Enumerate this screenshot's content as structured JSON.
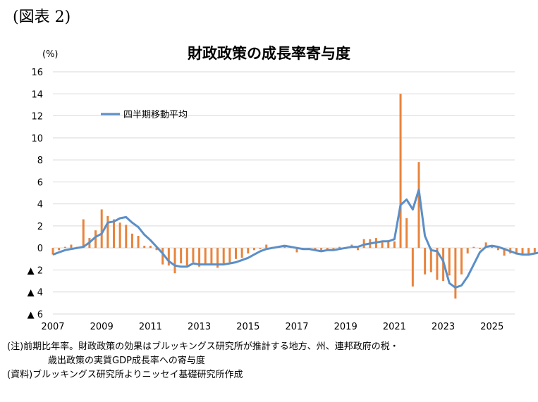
{
  "figure_label": "(図表 2)",
  "notes": {
    "note_line1": "(注)前期比年率。財政政策の効果はブルッキングス研究所が推計する地方、州、連邦政府の税・",
    "note_line2": "歳出政策の実質GDP成長率への寄与度",
    "source": "(資料)ブルッキングス研究所よりニッセイ基礎研究所作成"
  },
  "chart_data": {
    "type": "bar+line",
    "title": "財政政策の成長率寄与度",
    "ylabel": "(%)",
    "ylim": [
      -6,
      16
    ],
    "yticks": [
      16,
      14,
      12,
      10,
      8,
      6,
      4,
      2,
      0,
      -2,
      -4,
      -6
    ],
    "ytick_labels": [
      "16",
      "14",
      "12",
      "10",
      "8",
      "6",
      "4",
      "2",
      "0",
      "▲ 2",
      "▲ 4",
      "▲ 6"
    ],
    "xlabels": [
      "2007",
      "2009",
      "2011",
      "2013",
      "2015",
      "2017",
      "2019",
      "2021",
      "2023",
      "2025"
    ],
    "x_start": 2007.0,
    "grid": true,
    "colors": {
      "bars": "#e8843c",
      "line": "#5b8fc7",
      "grid": "#d9d9d9"
    },
    "series": [
      {
        "name": "",
        "kind": "bar",
        "values": [
          -0.6,
          -0.2,
          0.1,
          0.3,
          0.1,
          2.6,
          0.9,
          1.6,
          3.5,
          2.9,
          2.6,
          2.3,
          2.1,
          1.3,
          1.1,
          0.2,
          0.2,
          -0.2,
          -1.5,
          -1.6,
          -2.3,
          -1.4,
          -1.6,
          -1.3,
          -1.7,
          -1.5,
          -1.5,
          -1.8,
          -1.4,
          -1.3,
          -1.0,
          -0.9,
          -0.5,
          -0.2,
          -0.1,
          0.3,
          0.1,
          0.1,
          0.2,
          0.1,
          -0.4,
          -0.1,
          -0.1,
          -0.2,
          -0.3,
          -0.2,
          -0.1,
          0.1,
          -0.1,
          0.3,
          -0.2,
          0.8,
          0.8,
          0.9,
          0.6,
          0.7,
          0.6,
          14.0,
          2.7,
          -3.5,
          7.8,
          -2.4,
          -2.2,
          -2.9,
          -3.0,
          -2.5,
          -4.6,
          -2.4,
          -0.5,
          0.1,
          -0.1,
          0.5,
          0.2,
          -0.2,
          -0.7,
          -0.5,
          -0.6,
          -0.6,
          -0.6,
          -0.4,
          -0.4
        ]
      },
      {
        "name": "四半期移動平均",
        "kind": "line",
        "values": [
          -0.6,
          -0.4,
          -0.2,
          -0.1,
          0.0,
          0.1,
          0.5,
          1.0,
          1.3,
          2.3,
          2.4,
          2.7,
          2.8,
          2.3,
          1.9,
          1.2,
          0.7,
          0.1,
          -0.5,
          -1.2,
          -1.6,
          -1.7,
          -1.7,
          -1.4,
          -1.5,
          -1.5,
          -1.5,
          -1.5,
          -1.5,
          -1.4,
          -1.3,
          -1.1,
          -0.9,
          -0.6,
          -0.3,
          -0.1,
          0.0,
          0.1,
          0.2,
          0.1,
          0.0,
          -0.1,
          -0.1,
          -0.2,
          -0.3,
          -0.2,
          -0.2,
          -0.1,
          0.0,
          0.1,
          0.1,
          0.3,
          0.4,
          0.5,
          0.6,
          0.6,
          0.8,
          3.9,
          4.4,
          3.5,
          5.3,
          1.1,
          -0.2,
          -0.3,
          -1.2,
          -3.2,
          -3.6,
          -3.4,
          -2.6,
          -1.5,
          -0.4,
          0.1,
          0.2,
          0.1,
          -0.1,
          -0.3,
          -0.5,
          -0.6,
          -0.6,
          -0.5,
          -0.4
        ]
      }
    ],
    "legend": {
      "position": "top-left",
      "label": "四半期移動平均"
    }
  }
}
